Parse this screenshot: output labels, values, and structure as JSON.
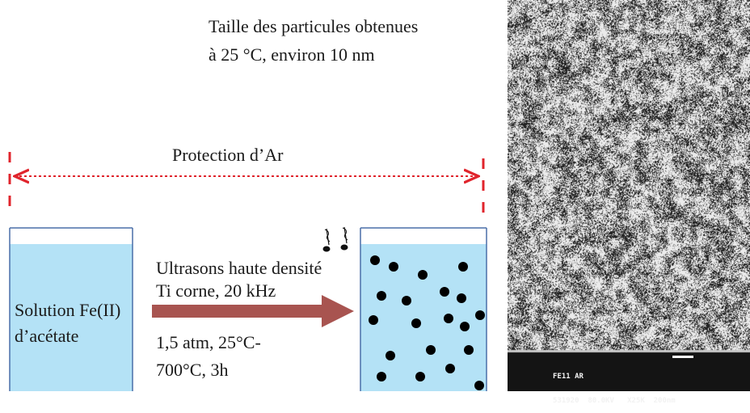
{
  "diagram": {
    "size_note_line1": "Taille des particules obtenues",
    "size_note_line2": "à 25 °C, environ 10 nm",
    "protection_label": "Protection d’Ar",
    "left_beaker_line1": "Solution Fe(II)",
    "left_beaker_line2": "d’acétate",
    "ultrasound_line1": "Ultrasons haute densité",
    "ultrasound_line2": "Ti corne, 20 kHz",
    "conditions_line1": "1,5 atm, 25°C-",
    "conditions_line2": "700°C, 3h",
    "liquid_color": "#b4e2f6",
    "beaker_border_color": "#4a6fa8",
    "arrow_color": "#a85450",
    "dashed_line_color": "#e0242c"
  },
  "micrograph": {
    "caption_row1": "FE11 AR",
    "caption_row2": "531920  80.0KV   X25K  200nm"
  }
}
